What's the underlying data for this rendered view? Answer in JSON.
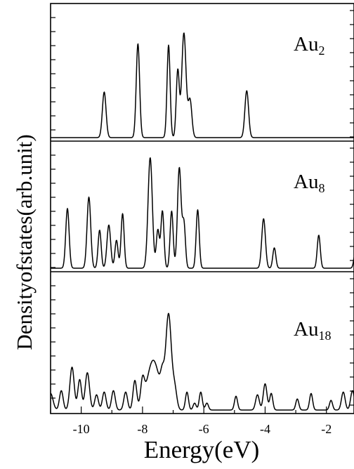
{
  "chart_data": {
    "type": "line",
    "title": "",
    "xlabel": "Energy(eV)",
    "ylabel": "Densityofstates(arb.unit)",
    "xlim": [
      -11,
      -1.1
    ],
    "x_ticks": [
      -10,
      -8,
      -6,
      -4,
      -2
    ],
    "x_tick_labels": [
      "-10",
      "-8",
      "-6",
      "-4",
      "-2"
    ],
    "grid": false,
    "legend": "none",
    "line_color": "#000000",
    "panels": [
      {
        "label_main": "Au",
        "label_sub": "2",
        "ylim": [
          0,
          1.0
        ],
        "series": [
          {
            "peaks": [
              {
                "x": -9.25,
                "h": 0.34,
                "w": 0.06
              },
              {
                "x": -8.15,
                "h": 0.7,
                "w": 0.055
              },
              {
                "x": -7.15,
                "h": 0.69,
                "w": 0.05
              },
              {
                "x": -6.85,
                "h": 0.5,
                "w": 0.05
              },
              {
                "x": -6.65,
                "h": 0.78,
                "w": 0.07
              },
              {
                "x": -6.45,
                "h": 0.28,
                "w": 0.06
              },
              {
                "x": -4.6,
                "h": 0.35,
                "w": 0.06
              }
            ]
          }
        ]
      },
      {
        "label_main": "Au",
        "label_sub": "8",
        "ylim": [
          0,
          1.0
        ],
        "series": [
          {
            "peaks": [
              {
                "x": -10.45,
                "h": 0.47,
                "w": 0.055
              },
              {
                "x": -9.75,
                "h": 0.56,
                "w": 0.06
              },
              {
                "x": -9.4,
                "h": 0.3,
                "w": 0.05
              },
              {
                "x": -9.1,
                "h": 0.34,
                "w": 0.06
              },
              {
                "x": -8.85,
                "h": 0.22,
                "w": 0.05
              },
              {
                "x": -8.65,
                "h": 0.43,
                "w": 0.05
              },
              {
                "x": -7.75,
                "h": 0.87,
                "w": 0.07
              },
              {
                "x": -7.5,
                "h": 0.3,
                "w": 0.05
              },
              {
                "x": -7.35,
                "h": 0.45,
                "w": 0.05
              },
              {
                "x": -7.05,
                "h": 0.45,
                "w": 0.05
              },
              {
                "x": -6.8,
                "h": 0.79,
                "w": 0.06
              },
              {
                "x": -6.65,
                "h": 0.35,
                "w": 0.05
              },
              {
                "x": -6.2,
                "h": 0.46,
                "w": 0.05
              },
              {
                "x": -4.05,
                "h": 0.39,
                "w": 0.06
              },
              {
                "x": -3.7,
                "h": 0.16,
                "w": 0.05
              },
              {
                "x": -2.25,
                "h": 0.26,
                "w": 0.05
              },
              {
                "x": -1.05,
                "h": 0.14,
                "w": 0.05
              }
            ]
          }
        ]
      },
      {
        "label_main": "Au",
        "label_sub": "18",
        "ylim": [
          0,
          1.0
        ],
        "series": [
          {
            "peaks": [
              {
                "x": -11.0,
                "h": 0.12,
                "w": 0.08
              },
              {
                "x": -10.65,
                "h": 0.14,
                "w": 0.06
              },
              {
                "x": -10.3,
                "h": 0.31,
                "w": 0.07
              },
              {
                "x": -10.05,
                "h": 0.22,
                "w": 0.06
              },
              {
                "x": -9.8,
                "h": 0.27,
                "w": 0.07
              },
              {
                "x": -9.5,
                "h": 0.11,
                "w": 0.06
              },
              {
                "x": -9.25,
                "h": 0.13,
                "w": 0.06
              },
              {
                "x": -8.95,
                "h": 0.14,
                "w": 0.06
              },
              {
                "x": -8.55,
                "h": 0.13,
                "w": 0.06
              },
              {
                "x": -8.25,
                "h": 0.21,
                "w": 0.06
              },
              {
                "x": -8.0,
                "h": 0.17,
                "w": 0.06
              },
              {
                "x": -7.65,
                "h": 0.36,
                "w": 0.2
              },
              {
                "x": -7.35,
                "h": 0.16,
                "w": 0.06
              },
              {
                "x": -7.15,
                "h": 0.68,
                "w": 0.09
              },
              {
                "x": -6.95,
                "h": 0.15,
                "w": 0.07
              },
              {
                "x": -6.55,
                "h": 0.13,
                "w": 0.05
              },
              {
                "x": -6.3,
                "h": 0.05,
                "w": 0.05
              },
              {
                "x": -6.1,
                "h": 0.13,
                "w": 0.05
              },
              {
                "x": -5.9,
                "h": 0.05,
                "w": 0.05
              },
              {
                "x": -4.95,
                "h": 0.1,
                "w": 0.05
              },
              {
                "x": -4.25,
                "h": 0.11,
                "w": 0.06
              },
              {
                "x": -4.0,
                "h": 0.19,
                "w": 0.06
              },
              {
                "x": -3.8,
                "h": 0.12,
                "w": 0.05
              },
              {
                "x": -2.95,
                "h": 0.08,
                "w": 0.05
              },
              {
                "x": -2.5,
                "h": 0.12,
                "w": 0.05
              },
              {
                "x": -1.85,
                "h": 0.07,
                "w": 0.05
              },
              {
                "x": -1.45,
                "h": 0.13,
                "w": 0.06
              },
              {
                "x": -1.15,
                "h": 0.14,
                "w": 0.06
              }
            ]
          }
        ]
      }
    ]
  }
}
